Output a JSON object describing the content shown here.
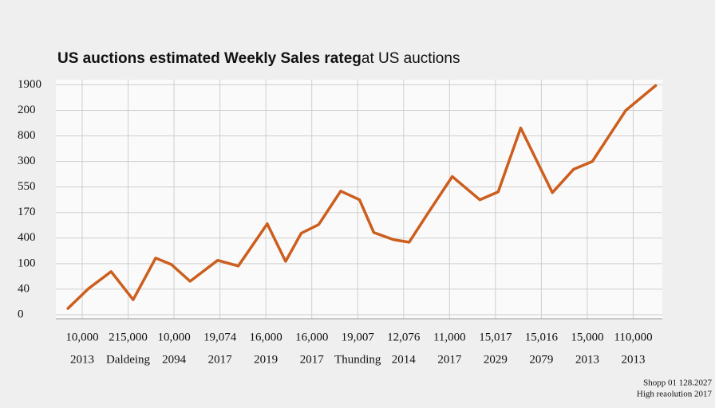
{
  "chart_data": {
    "type": "line",
    "title": "US auctions estimated Weekly Sales rateg",
    "title_suffix": "at US auctions",
    "color": "#cc5e1e",
    "grid": true,
    "xlim": [
      -0.4,
      12.6
    ],
    "xticks": [
      {
        "value": 0,
        "label": "10,000"
      },
      {
        "value": 1,
        "label": "215,000"
      },
      {
        "value": 2,
        "label": "10,000"
      },
      {
        "value": 3,
        "label": "19,074"
      },
      {
        "value": 4,
        "label": "16,000"
      },
      {
        "value": 5,
        "label": "16,000"
      },
      {
        "value": 6,
        "label": "19,007"
      },
      {
        "value": 7,
        "label": "12,076"
      },
      {
        "value": 8,
        "label": "11,000"
      },
      {
        "value": 9,
        "label": "15,017"
      },
      {
        "value": 10,
        "label": "15,016"
      },
      {
        "value": 11,
        "label": "15,000"
      },
      {
        "value": 12,
        "label": "110,000"
      }
    ],
    "xtick_sublabels": [
      "2013",
      "Daldeing",
      "2094",
      "2017",
      "2019",
      "2017",
      "Thunding",
      "2014",
      "2017",
      "2029",
      "2079",
      "2013",
      "2013"
    ],
    "ylim": [
      0,
      9.2
    ],
    "yticks": [
      {
        "value": 0,
        "label": "0"
      },
      {
        "value": 1,
        "label": "40"
      },
      {
        "value": 2,
        "label": "100"
      },
      {
        "value": 3,
        "label": "400"
      },
      {
        "value": 4,
        "label": "170"
      },
      {
        "value": 5,
        "label": "550"
      },
      {
        "value": 6,
        "label": "300"
      },
      {
        "value": 7,
        "label": "800"
      },
      {
        "value": 8,
        "label": "200"
      },
      {
        "value": 9,
        "label": "1900"
      }
    ],
    "x": [
      -0.31,
      0.14,
      0.63,
      1.11,
      1.6,
      1.94,
      2.35,
      2.95,
      3.4,
      4.03,
      4.43,
      4.77,
      5.15,
      5.63,
      6.04,
      6.35,
      6.78,
      7.12,
      7.55,
      8.06,
      8.66,
      9.06,
      9.55,
      10.24,
      10.7,
      11.11,
      11.84,
      12.49
    ],
    "values": [
      0.25,
      1.03,
      1.69,
      0.59,
      2.22,
      1.97,
      1.31,
      2.13,
      1.91,
      3.56,
      2.09,
      3.19,
      3.53,
      4.84,
      4.5,
      3.22,
      2.94,
      2.84,
      4.03,
      5.41,
      4.5,
      4.81,
      7.31,
      4.78,
      5.69,
      6.0,
      8.0,
      8.97
    ],
    "annotations": [
      "Shopp 01 128.2027",
      "High reaolution 2017"
    ]
  }
}
